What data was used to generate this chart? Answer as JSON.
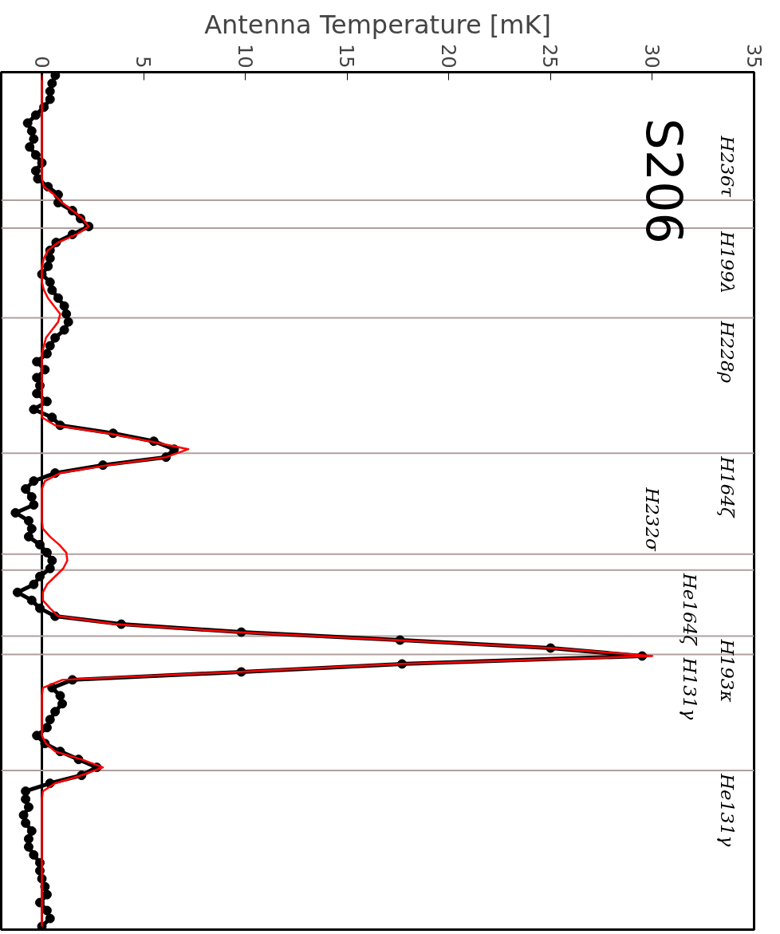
{
  "chart_data": {
    "type": "line",
    "orientation": "horizontal",
    "xlabel": "Antenna Temperature [mK]",
    "xlim": [
      -2,
      35
    ],
    "xticks": [
      0,
      5,
      10,
      15,
      20,
      25,
      30,
      35
    ],
    "categories": [
      null,
      null,
      null,
      null,
      null,
      null,
      null,
      null,
      null,
      null,
      null,
      null,
      null,
      null,
      null,
      null,
      null,
      null,
      null,
      null,
      null,
      null,
      null,
      null,
      null,
      null,
      null,
      null,
      null,
      null,
      null,
      null,
      null,
      null,
      null,
      null,
      null,
      null,
      null,
      null,
      null,
      null,
      null,
      null,
      null,
      null,
      null,
      null,
      null,
      null,
      null,
      null,
      null,
      null,
      null,
      null,
      null,
      null,
      null,
      null,
      null,
      null,
      null,
      null,
      null,
      null,
      null,
      null,
      null,
      null,
      null,
      null,
      null,
      null,
      null,
      null,
      null,
      null,
      null,
      null,
      null,
      null,
      null,
      null,
      null,
      null,
      null,
      null,
      null,
      null,
      null,
      null,
      null,
      null,
      null,
      null,
      null,
      null,
      null,
      null,
      null,
      null,
      null,
      null,
      null,
      null,
      null,
      null
    ],
    "series": [
      {
        "color": "#000000",
        "marker": "circle",
        "values": [
          0.66,
          0.5,
          0.4,
          0.4,
          0.1,
          -0.3,
          -0.7,
          -0.5,
          -0.4,
          -0.6,
          -0.3,
          0,
          -0.3,
          -0.2,
          0.3,
          0.8,
          0.8,
          1.5,
          1.9,
          2.3,
          1.5,
          0.7,
          0.4,
          0.4,
          0.3,
          0,
          0.4,
          0.5,
          0.8,
          1.1,
          1.2,
          1.3,
          1.1,
          0.65,
          0.4,
          0.25,
          -0.25,
          0.15,
          -0.25,
          -0.1,
          -0.25,
          0.25,
          -0.4,
          0.5,
          0.9,
          3.5,
          5.5,
          6.5,
          6.1,
          3.0,
          0.65,
          -0.4,
          -0.8,
          -0.5,
          -0.4,
          -1.3,
          -0.65,
          -0.5,
          -0.65,
          -0.1,
          0.25,
          0.5,
          0.4,
          -0.1,
          -0.4,
          -1.2,
          -0.5,
          -0.1,
          0.65,
          3.9,
          9.8,
          17.6,
          25,
          29.5,
          17.7,
          9.8,
          1.5,
          0.5,
          0.9,
          1.0,
          0.65,
          0.4,
          0.25,
          -0.25,
          0.15,
          0.9,
          1.8,
          2.7,
          1.95,
          0.4,
          -0.8,
          -0.8,
          -0.65,
          -0.9,
          -0.8,
          -0.5,
          -0.65,
          -0.65,
          -0.4,
          -0.1,
          -0.1,
          0,
          0.15,
          0.25,
          -0.1,
          0.25,
          0.4,
          0
        ]
      },
      {
        "color": "#ff0000",
        "values": [
          0,
          0,
          0,
          0,
          0,
          0,
          0,
          0,
          0,
          0,
          0,
          0,
          0,
          0,
          0.1,
          0.6,
          1.0,
          1.5,
          2.0,
          2.3,
          1.7,
          0.8,
          0.3,
          0.1,
          0,
          0,
          0,
          0.1,
          0.3,
          0.6,
          0.9,
          0.8,
          0.5,
          0.2,
          0.1,
          0,
          0,
          0,
          0,
          0,
          0,
          0,
          0,
          0,
          0.65,
          3.25,
          5.3,
          7.2,
          6.1,
          3.25,
          0.9,
          0.15,
          0,
          0,
          0,
          0,
          0,
          0.05,
          0.4,
          0.85,
          1.2,
          1.25,
          1.05,
          0.65,
          0.25,
          0.05,
          0.05,
          0.4,
          0.8,
          3.6,
          9.6,
          17.4,
          25,
          30,
          17.5,
          9.6,
          1.0,
          0.05,
          0,
          0,
          0,
          0,
          0,
          0,
          0.2,
          0.65,
          1.95,
          3.0,
          1.95,
          0.65,
          0.05,
          0,
          0,
          0,
          0,
          0,
          0,
          0,
          0,
          0,
          0,
          0,
          0,
          0,
          0,
          0,
          0,
          0
        ]
      }
    ],
    "ref_lines": [
      {
        "axis": "x",
        "value": 0,
        "color": "#000000"
      }
    ],
    "annotations": [
      "S206",
      "H236τ",
      "H199λ",
      "H228ρ",
      "H164ζ",
      "H232σ",
      "He164ζ",
      "H193κ",
      "H131γ",
      "He131γ"
    ]
  }
}
